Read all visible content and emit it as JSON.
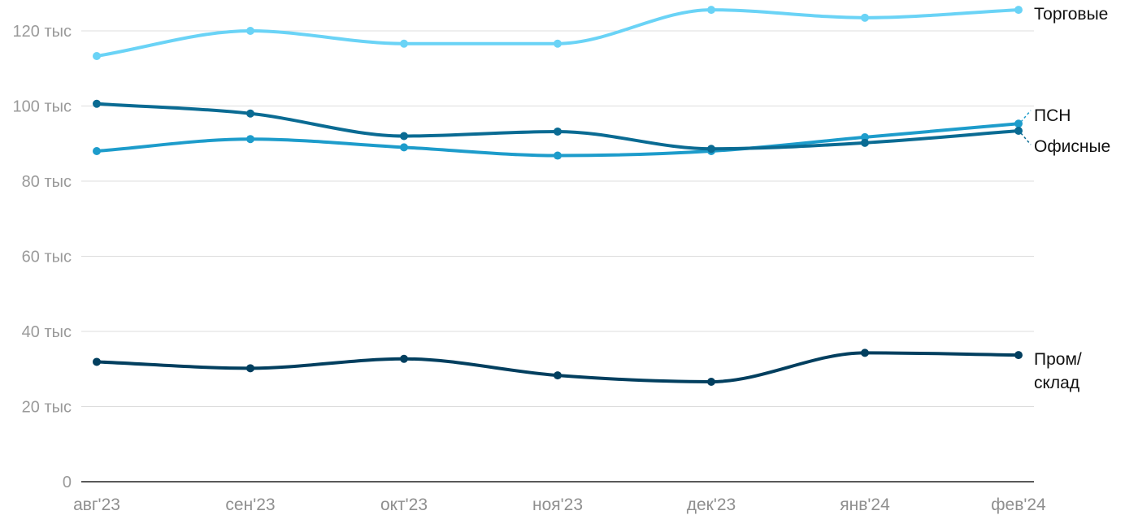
{
  "chart_data": {
    "type": "line",
    "categories": [
      "авг'23",
      "сен'23",
      "окт'23",
      "ноя'23",
      "дек'23",
      "янв'24",
      "фев'24"
    ],
    "ylim": [
      0,
      125000
    ],
    "y_ticks": [
      {
        "value": 0,
        "label": "0"
      },
      {
        "value": 20000,
        "label": "20 тыс"
      },
      {
        "value": 40000,
        "label": "40 тыс"
      },
      {
        "value": 60000,
        "label": "60 тыс"
      },
      {
        "value": 80000,
        "label": "80 тыс"
      },
      {
        "value": 100000,
        "label": "100 тыс"
      },
      {
        "value": 120000,
        "label": "120 тыс"
      }
    ],
    "grid": true,
    "series": [
      {
        "name": "Торговые",
        "color": "#6ad3f6",
        "values": [
          113300,
          120000,
          116600,
          116600,
          125600,
          123500,
          125600
        ]
      },
      {
        "name": "ПСН",
        "color": "#1d9ccb",
        "values": [
          88000,
          91200,
          89000,
          86800,
          88000,
          91700,
          95300
        ]
      },
      {
        "name": "Офисные",
        "color": "#0a6b93",
        "values": [
          100600,
          98000,
          92000,
          93200,
          88600,
          90200,
          93400
        ]
      },
      {
        "name": "Пром/ склад",
        "color": "#023f5f",
        "values": [
          31900,
          30200,
          32700,
          28300,
          26600,
          34300,
          33700
        ]
      }
    ]
  }
}
